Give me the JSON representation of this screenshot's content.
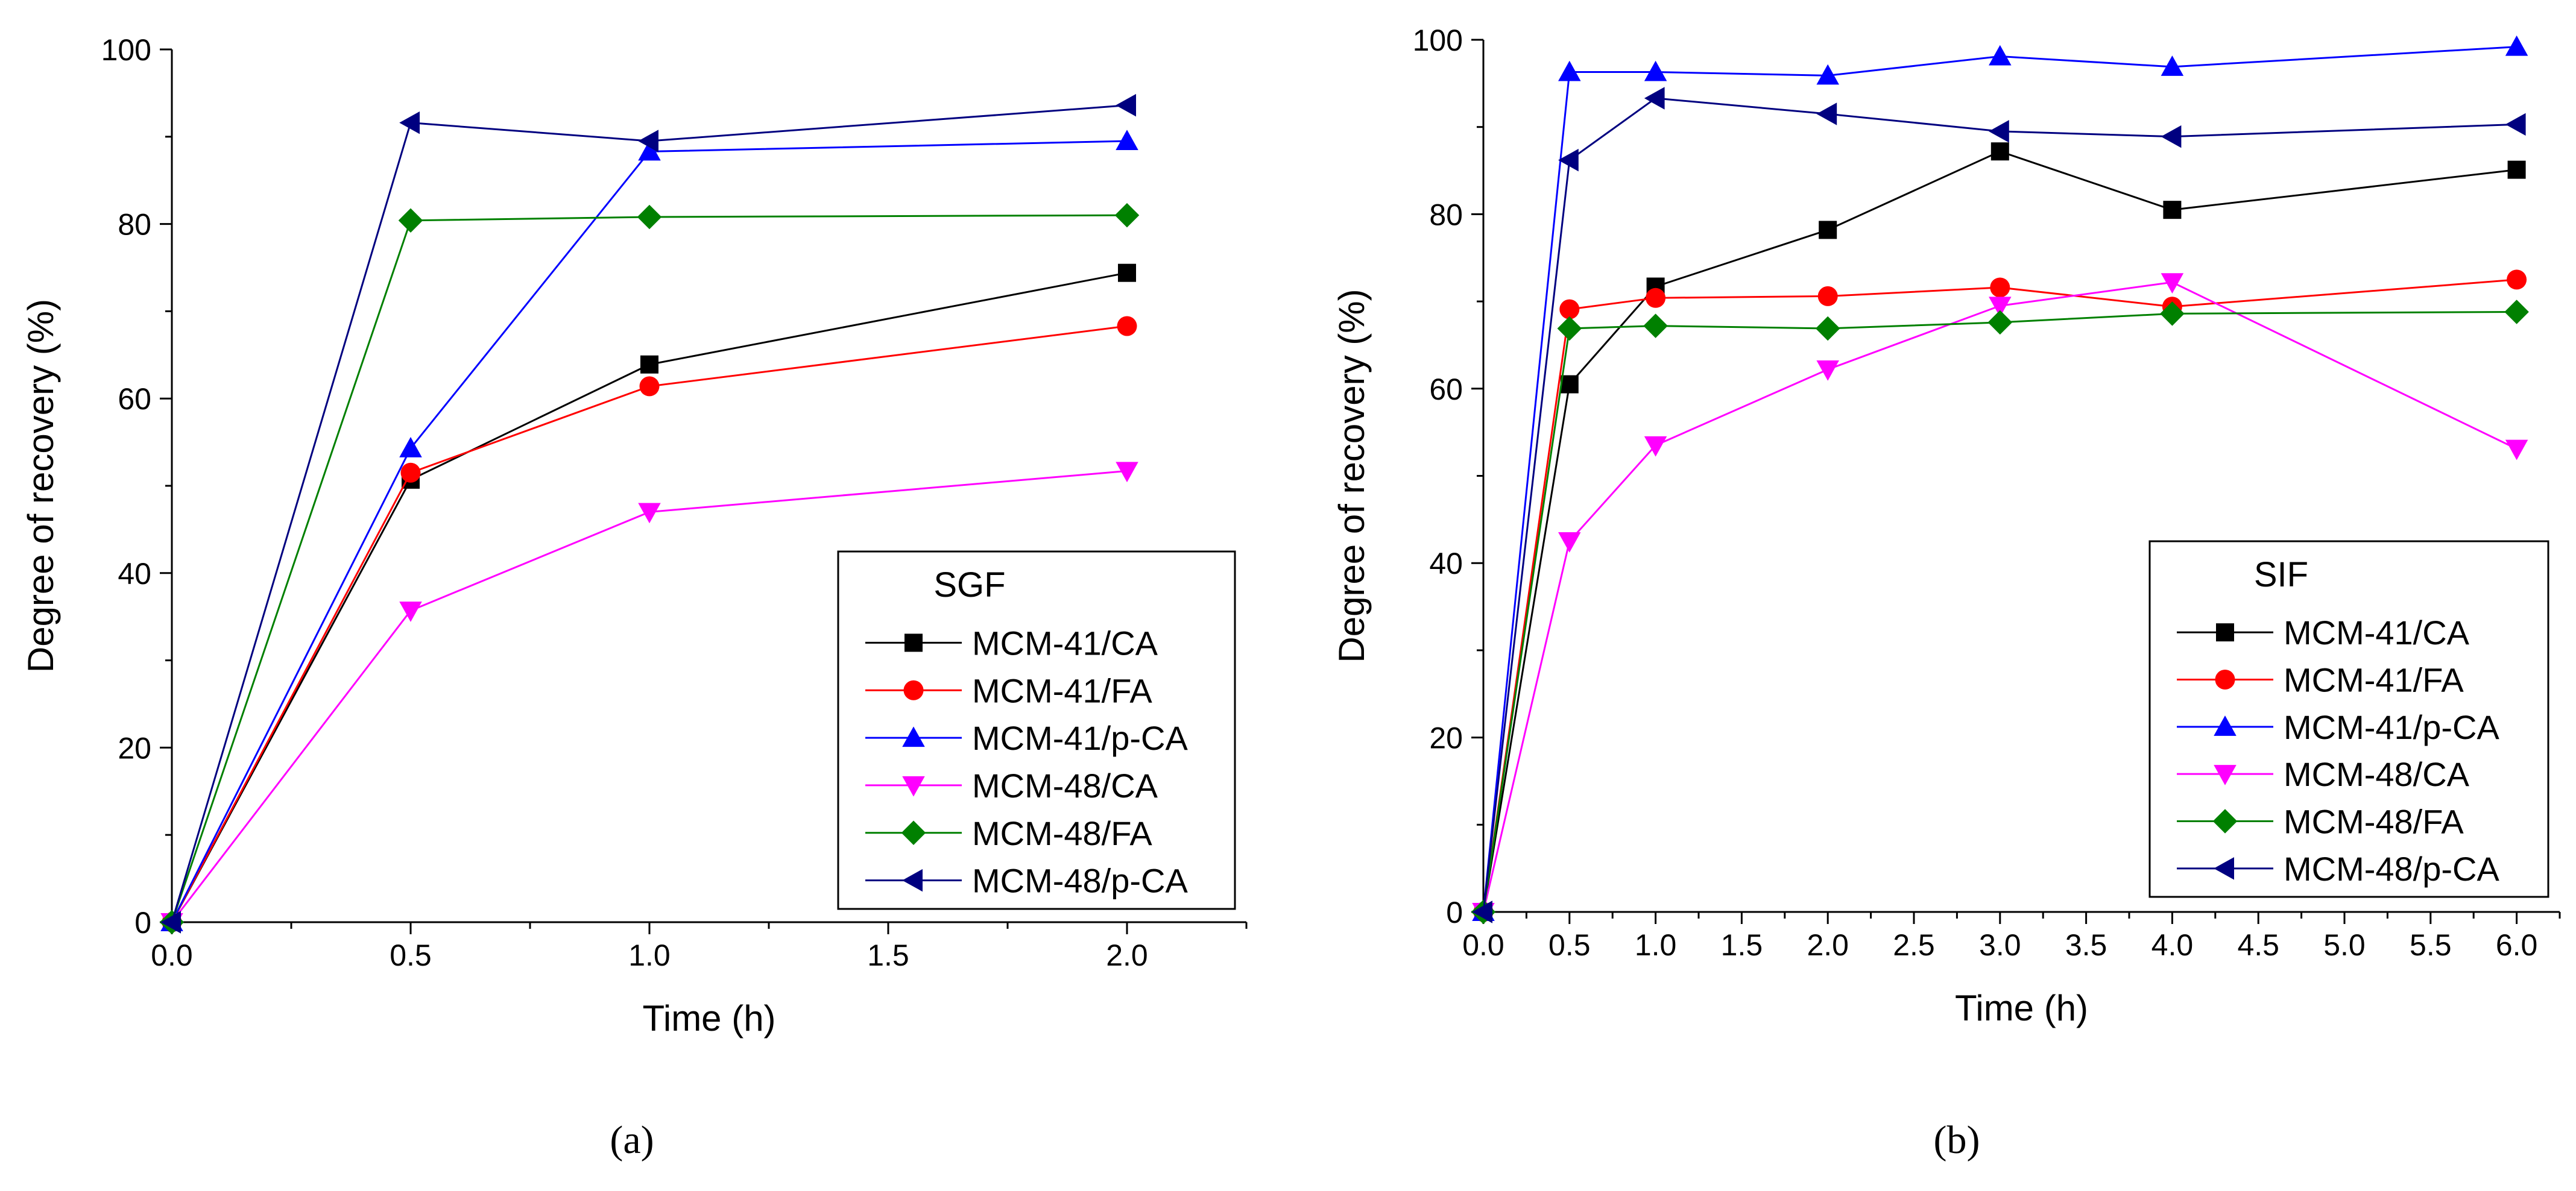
{
  "chart_data": [
    {
      "type": "line",
      "panel_label": "(a)",
      "xlabel": "Time (h)",
      "ylabel": "Degree of recovery (%)",
      "xlim": [
        0,
        2.25
      ],
      "ylim": [
        0,
        100
      ],
      "x_ticks": [
        0,
        0.5,
        1,
        1.5,
        2
      ],
      "x_tick_labels": [
        "0.0",
        "0.5",
        "1.0",
        "1.5",
        "2.0"
      ],
      "y_ticks": [
        0,
        20,
        40,
        60,
        80,
        100
      ],
      "y_tick_labels": [
        "0",
        "20",
        "40",
        "60",
        "80",
        "100"
      ],
      "legend_title": "SGF",
      "legend_position": "bottom-right",
      "series": [
        {
          "name": "MCM-41/CA",
          "color": "#000000",
          "marker": "square",
          "x": [
            0,
            0.5,
            1,
            2
          ],
          "values": [
            0,
            50.7,
            63.9,
            74.4
          ]
        },
        {
          "name": "MCM-41/FA",
          "color": "#ff0000",
          "marker": "circle",
          "x": [
            0,
            0.5,
            1,
            2
          ],
          "values": [
            0,
            51.5,
            61.4,
            68.3
          ]
        },
        {
          "name": "MCM-41/p-CA",
          "color": "#0000ff",
          "marker": "triangle-up",
          "x": [
            0,
            0.5,
            1,
            2
          ],
          "values": [
            0,
            54.3,
            88.3,
            89.5
          ]
        },
        {
          "name": "MCM-48/CA",
          "color": "#ff00ff",
          "marker": "triangle-down",
          "x": [
            0,
            0.5,
            1,
            2
          ],
          "values": [
            0,
            35.7,
            47.0,
            51.7
          ]
        },
        {
          "name": "MCM-48/FA",
          "color": "#008000",
          "marker": "diamond",
          "x": [
            0,
            0.5,
            1,
            2
          ],
          "values": [
            0,
            80.4,
            80.8,
            81.0
          ]
        },
        {
          "name": "MCM-48/p-CA",
          "color": "#000080",
          "marker": "triangle-left",
          "x": [
            0,
            0.5,
            1,
            2
          ],
          "values": [
            0,
            91.6,
            89.5,
            93.6
          ]
        }
      ]
    },
    {
      "type": "line",
      "panel_label": "(b)",
      "xlabel": "Time (h)",
      "ylabel": "Degree of recovery (%)",
      "xlim": [
        0,
        6.25
      ],
      "ylim": [
        0,
        100
      ],
      "x_ticks": [
        0,
        0.5,
        1,
        1.5,
        2,
        2.5,
        3,
        3.5,
        4,
        4.5,
        5,
        5.5,
        6
      ],
      "x_tick_labels": [
        "0.0",
        "0.5",
        "1.0",
        "1.5",
        "2.0",
        "2.5",
        "3.0",
        "3.5",
        "4.0",
        "4.5",
        "5.0",
        "5.5",
        "6.0"
      ],
      "y_ticks": [
        0,
        20,
        40,
        60,
        80,
        100
      ],
      "y_tick_labels": [
        "0",
        "20",
        "40",
        "60",
        "80",
        "100"
      ],
      "legend_title": "SIF",
      "legend_position": "bottom-right",
      "series": [
        {
          "name": "MCM-41/CA",
          "color": "#000000",
          "marker": "square",
          "x": [
            0,
            0.5,
            1,
            2,
            3,
            4,
            6
          ],
          "values": [
            0,
            60.5,
            71.7,
            78.2,
            87.2,
            80.5,
            85.1
          ]
        },
        {
          "name": "MCM-41/FA",
          "color": "#ff0000",
          "marker": "circle",
          "x": [
            0,
            0.5,
            1,
            2,
            3,
            4,
            6
          ],
          "values": [
            0,
            69.1,
            70.4,
            70.6,
            71.6,
            69.4,
            72.5
          ]
        },
        {
          "name": "MCM-41/p-CA",
          "color": "#0000ff",
          "marker": "triangle-up",
          "x": [
            0,
            0.5,
            1,
            2,
            3,
            4,
            6
          ],
          "values": [
            0,
            96.3,
            96.3,
            95.9,
            98.1,
            96.9,
            99.2
          ]
        },
        {
          "name": "MCM-48/CA",
          "color": "#ff00ff",
          "marker": "triangle-down",
          "x": [
            0,
            0.5,
            1,
            2,
            3,
            4,
            6
          ],
          "values": [
            0,
            42.5,
            53.5,
            62.2,
            69.5,
            72.2,
            53.1
          ]
        },
        {
          "name": "MCM-48/FA",
          "color": "#008000",
          "marker": "diamond",
          "x": [
            0,
            0.5,
            1,
            2,
            3,
            4,
            6
          ],
          "values": [
            0,
            66.9,
            67.2,
            66.9,
            67.6,
            68.6,
            68.8
          ]
        },
        {
          "name": "MCM-48/p-CA",
          "color": "#000080",
          "marker": "triangle-left",
          "x": [
            0,
            0.5,
            1,
            2,
            3,
            4,
            6
          ],
          "values": [
            0,
            86.2,
            93.3,
            91.5,
            89.5,
            88.9,
            90.3
          ]
        }
      ]
    }
  ]
}
